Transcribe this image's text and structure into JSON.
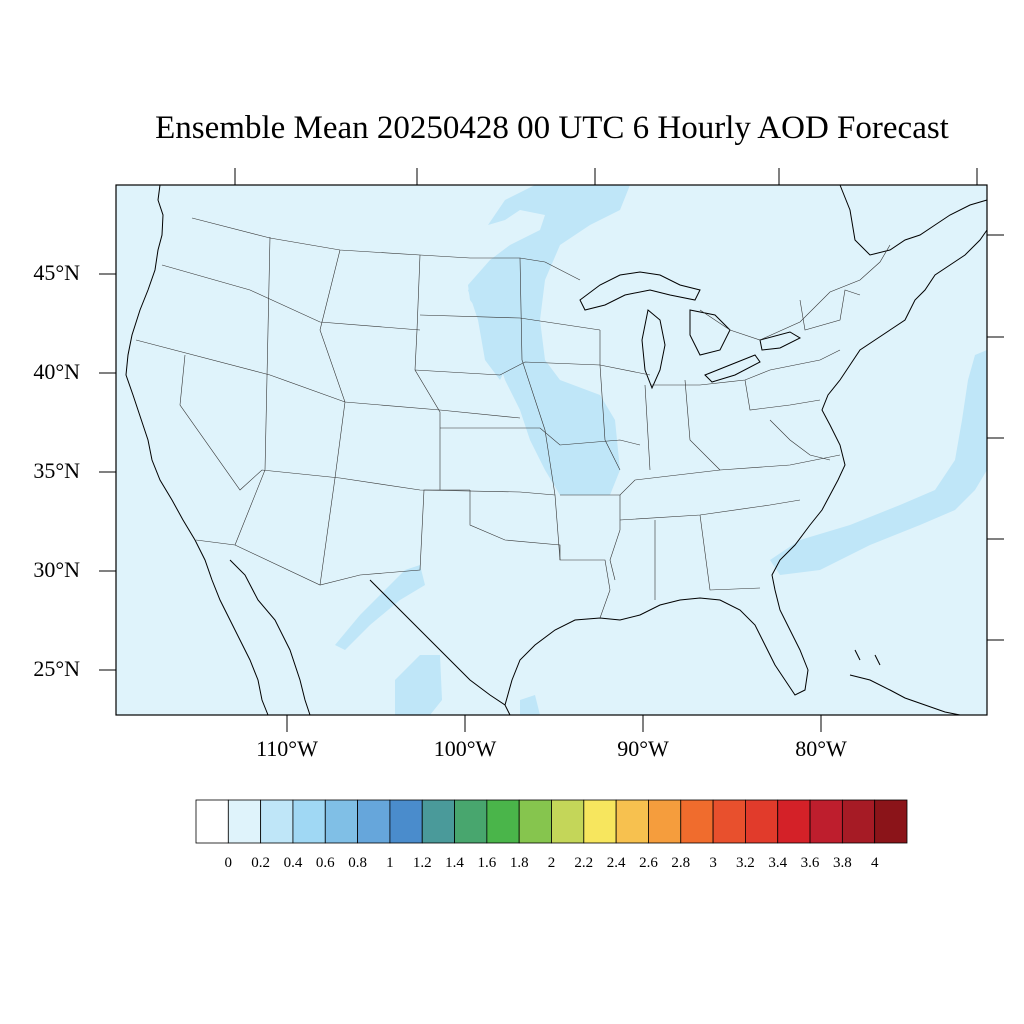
{
  "title": "Ensemble Mean 20250428 00 UTC 6 Hourly AOD Forecast",
  "lat_labels": [
    "45°N",
    "40°N",
    "35°N",
    "30°N",
    "25°N"
  ],
  "lon_labels": [
    "110°W",
    "100°W",
    "90°W",
    "80°W"
  ],
  "colorbar": {
    "labels": [
      "0",
      "0.2",
      "0.4",
      "0.6",
      "0.8",
      "1",
      "1.2",
      "1.4",
      "1.6",
      "1.8",
      "2",
      "2.2",
      "2.4",
      "2.6",
      "2.8",
      "3",
      "3.2",
      "3.4",
      "3.6",
      "3.8",
      "4"
    ],
    "colors": [
      "#ffffff",
      "#dff3fb",
      "#bfe6f8",
      "#a0d8f4",
      "#80bfe6",
      "#66a6db",
      "#4a8ccc",
      "#4a9a9a",
      "#48a66e",
      "#4ab54a",
      "#86c54e",
      "#c4d659",
      "#f7e65e",
      "#f7c14f",
      "#f59d3d",
      "#f06c2d",
      "#e8502d",
      "#e13b2b",
      "#d42128",
      "#be1e2d",
      "#a61b25",
      "#8b1419"
    ]
  },
  "colors": {
    "background_aod": "#dff3fb",
    "plume_aod": "#bfe6f8",
    "boundary_line": "#000000"
  }
}
